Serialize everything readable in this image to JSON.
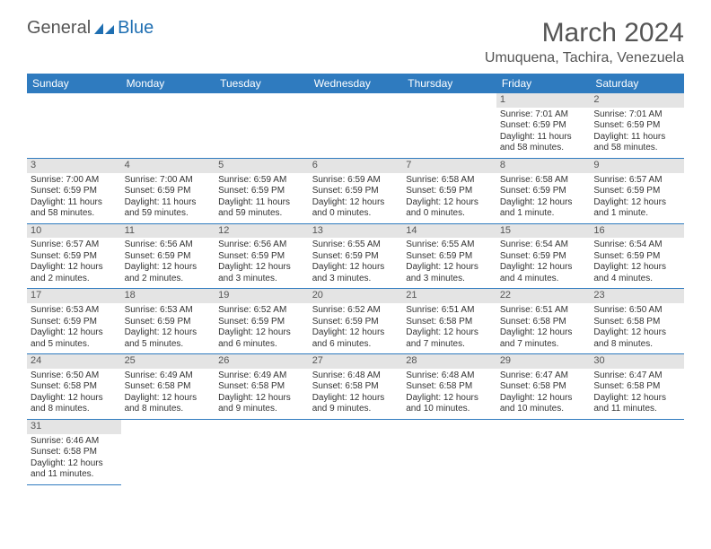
{
  "logo": {
    "part1": "General",
    "part2": "Blue"
  },
  "title": "March 2024",
  "location": "Umuquena, Tachira, Venezuela",
  "header_color": "#2f7bbf",
  "daynum_bg": "#e4e4e4",
  "weekdays": [
    "Sunday",
    "Monday",
    "Tuesday",
    "Wednesday",
    "Thursday",
    "Friday",
    "Saturday"
  ],
  "weeks": [
    [
      null,
      null,
      null,
      null,
      null,
      {
        "n": "1",
        "sr": "Sunrise: 7:01 AM",
        "ss": "Sunset: 6:59 PM",
        "dl": "Daylight: 11 hours and 58 minutes."
      },
      {
        "n": "2",
        "sr": "Sunrise: 7:01 AM",
        "ss": "Sunset: 6:59 PM",
        "dl": "Daylight: 11 hours and 58 minutes."
      }
    ],
    [
      {
        "n": "3",
        "sr": "Sunrise: 7:00 AM",
        "ss": "Sunset: 6:59 PM",
        "dl": "Daylight: 11 hours and 58 minutes."
      },
      {
        "n": "4",
        "sr": "Sunrise: 7:00 AM",
        "ss": "Sunset: 6:59 PM",
        "dl": "Daylight: 11 hours and 59 minutes."
      },
      {
        "n": "5",
        "sr": "Sunrise: 6:59 AM",
        "ss": "Sunset: 6:59 PM",
        "dl": "Daylight: 11 hours and 59 minutes."
      },
      {
        "n": "6",
        "sr": "Sunrise: 6:59 AM",
        "ss": "Sunset: 6:59 PM",
        "dl": "Daylight: 12 hours and 0 minutes."
      },
      {
        "n": "7",
        "sr": "Sunrise: 6:58 AM",
        "ss": "Sunset: 6:59 PM",
        "dl": "Daylight: 12 hours and 0 minutes."
      },
      {
        "n": "8",
        "sr": "Sunrise: 6:58 AM",
        "ss": "Sunset: 6:59 PM",
        "dl": "Daylight: 12 hours and 1 minute."
      },
      {
        "n": "9",
        "sr": "Sunrise: 6:57 AM",
        "ss": "Sunset: 6:59 PM",
        "dl": "Daylight: 12 hours and 1 minute."
      }
    ],
    [
      {
        "n": "10",
        "sr": "Sunrise: 6:57 AM",
        "ss": "Sunset: 6:59 PM",
        "dl": "Daylight: 12 hours and 2 minutes."
      },
      {
        "n": "11",
        "sr": "Sunrise: 6:56 AM",
        "ss": "Sunset: 6:59 PM",
        "dl": "Daylight: 12 hours and 2 minutes."
      },
      {
        "n": "12",
        "sr": "Sunrise: 6:56 AM",
        "ss": "Sunset: 6:59 PM",
        "dl": "Daylight: 12 hours and 3 minutes."
      },
      {
        "n": "13",
        "sr": "Sunrise: 6:55 AM",
        "ss": "Sunset: 6:59 PM",
        "dl": "Daylight: 12 hours and 3 minutes."
      },
      {
        "n": "14",
        "sr": "Sunrise: 6:55 AM",
        "ss": "Sunset: 6:59 PM",
        "dl": "Daylight: 12 hours and 3 minutes."
      },
      {
        "n": "15",
        "sr": "Sunrise: 6:54 AM",
        "ss": "Sunset: 6:59 PM",
        "dl": "Daylight: 12 hours and 4 minutes."
      },
      {
        "n": "16",
        "sr": "Sunrise: 6:54 AM",
        "ss": "Sunset: 6:59 PM",
        "dl": "Daylight: 12 hours and 4 minutes."
      }
    ],
    [
      {
        "n": "17",
        "sr": "Sunrise: 6:53 AM",
        "ss": "Sunset: 6:59 PM",
        "dl": "Daylight: 12 hours and 5 minutes."
      },
      {
        "n": "18",
        "sr": "Sunrise: 6:53 AM",
        "ss": "Sunset: 6:59 PM",
        "dl": "Daylight: 12 hours and 5 minutes."
      },
      {
        "n": "19",
        "sr": "Sunrise: 6:52 AM",
        "ss": "Sunset: 6:59 PM",
        "dl": "Daylight: 12 hours and 6 minutes."
      },
      {
        "n": "20",
        "sr": "Sunrise: 6:52 AM",
        "ss": "Sunset: 6:59 PM",
        "dl": "Daylight: 12 hours and 6 minutes."
      },
      {
        "n": "21",
        "sr": "Sunrise: 6:51 AM",
        "ss": "Sunset: 6:58 PM",
        "dl": "Daylight: 12 hours and 7 minutes."
      },
      {
        "n": "22",
        "sr": "Sunrise: 6:51 AM",
        "ss": "Sunset: 6:58 PM",
        "dl": "Daylight: 12 hours and 7 minutes."
      },
      {
        "n": "23",
        "sr": "Sunrise: 6:50 AM",
        "ss": "Sunset: 6:58 PM",
        "dl": "Daylight: 12 hours and 8 minutes."
      }
    ],
    [
      {
        "n": "24",
        "sr": "Sunrise: 6:50 AM",
        "ss": "Sunset: 6:58 PM",
        "dl": "Daylight: 12 hours and 8 minutes."
      },
      {
        "n": "25",
        "sr": "Sunrise: 6:49 AM",
        "ss": "Sunset: 6:58 PM",
        "dl": "Daylight: 12 hours and 8 minutes."
      },
      {
        "n": "26",
        "sr": "Sunrise: 6:49 AM",
        "ss": "Sunset: 6:58 PM",
        "dl": "Daylight: 12 hours and 9 minutes."
      },
      {
        "n": "27",
        "sr": "Sunrise: 6:48 AM",
        "ss": "Sunset: 6:58 PM",
        "dl": "Daylight: 12 hours and 9 minutes."
      },
      {
        "n": "28",
        "sr": "Sunrise: 6:48 AM",
        "ss": "Sunset: 6:58 PM",
        "dl": "Daylight: 12 hours and 10 minutes."
      },
      {
        "n": "29",
        "sr": "Sunrise: 6:47 AM",
        "ss": "Sunset: 6:58 PM",
        "dl": "Daylight: 12 hours and 10 minutes."
      },
      {
        "n": "30",
        "sr": "Sunrise: 6:47 AM",
        "ss": "Sunset: 6:58 PM",
        "dl": "Daylight: 12 hours and 11 minutes."
      }
    ],
    [
      {
        "n": "31",
        "sr": "Sunrise: 6:46 AM",
        "ss": "Sunset: 6:58 PM",
        "dl": "Daylight: 12 hours and 11 minutes."
      },
      null,
      null,
      null,
      null,
      null,
      null
    ]
  ]
}
